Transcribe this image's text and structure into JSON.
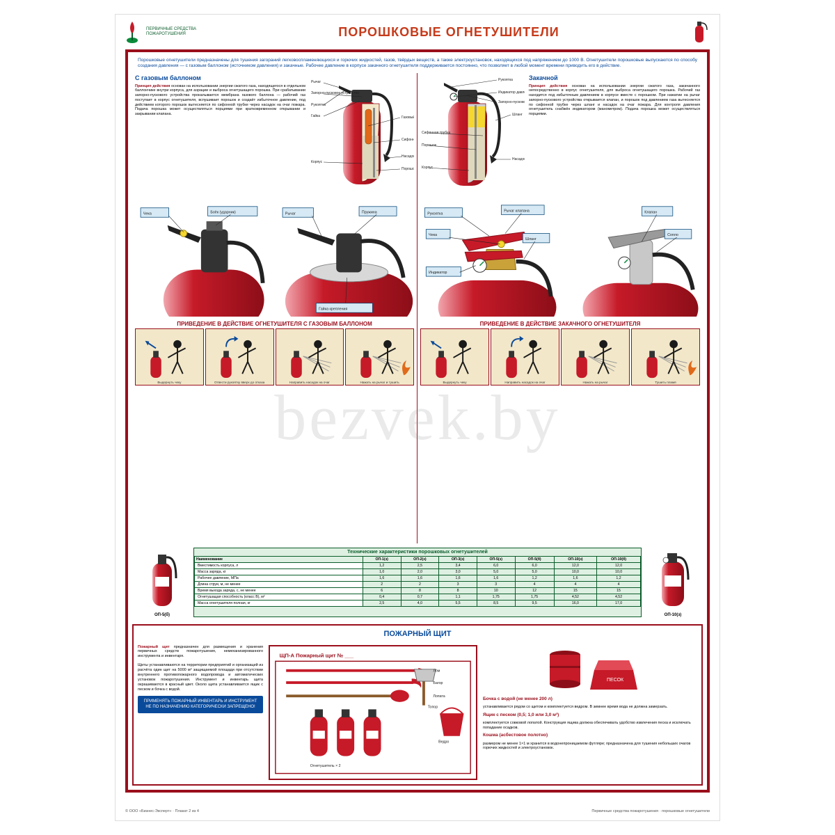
{
  "colors": {
    "frame": "#9a0e1b",
    "accent_blue": "#0a4a9a",
    "accent_red": "#9a0e1b",
    "text_dark": "#1a1a1a",
    "ext_red": "#c61a28",
    "ext_red_dark": "#8c0e18",
    "ext_highlight": "#f2f2f2",
    "powder_yellow": "#f5d730",
    "table_bg": "#def0e2",
    "table_border": "#0a5c2a",
    "panel_bg": "#f2e7c9",
    "remember_bg": "#0a4a9a",
    "title_color": "#c63a1a",
    "callout_bg": "#d6e9f5",
    "callout_border": "#0a4a7a",
    "green_logo": "#0a8a3a",
    "flame": "#e06a1a"
  },
  "header": {
    "sub1": "ПЕРВИЧНЫЕ СРЕДСТВА",
    "sub2": "ПОЖАРОТУШЕНИЯ",
    "title": "ПОРОШКОВЫЕ ОГНЕТУШИТЕЛИ"
  },
  "intro": "Порошковые огнетушители предназначены для тушения загораний легковоспламеняющихся и горючих жидкостей, газов, твёрдых веществ, а также электроустановок, находящихся под напряжением до 1000 В. Огнетушители порошковые выпускаются по способу создания давления — с газовым баллоном (источником давления) и закачные. Рабочее давление в корпусе закачного огнетушителя поддерживается постоянно, что позволяет в любой момент времени приводить его в действие.",
  "left": {
    "title": "С газовым баллоном",
    "lead": "Принцип действия",
    "desc": "основан на использовании энергии сжатого газа, находящегося в отдельном баллончике внутри корпуса, для аэрации и выброса огнетушащего порошка. При срабатывании запорно-пускового устройства прокалывается мембрана газового баллона — рабочий газ поступает в корпус огнетушителя, вспушивает порошок и создаёт избыточное давление, под действием которого порошок вытесняется по сифонной трубке через насадок на очаг пожара. Подача порошка может осуществляться порциями при кратковременном открывании и закрывании клапана.",
    "callouts": [
      "Рукоятка",
      "Запорно-пусковое устройство",
      "Сифонная трубка",
      "Газовый баллон",
      "Корпус",
      "Порошок",
      "Насадок",
      "Рычаг",
      "Гайка"
    ],
    "close_labels": [
      "Чека",
      "Боёк (ударник)",
      "Рычаг",
      "Пружина",
      "Гайка крепления"
    ],
    "strip_title": "ПРИВЕДЕНИЕ В ДЕЙСТВИЕ ОГНЕТУШИТЕЛЯ С ГАЗОВЫМ БАЛЛОНОМ",
    "steps": [
      "Выдернуть чеку",
      "Отвести рукоятку вверх до отказа",
      "Направить насадок на очаг",
      "Нажать на рычаг и тушить"
    ]
  },
  "right": {
    "title": "Закачной",
    "lead": "Принцип действия",
    "desc": "основан на использовании энергии сжатого газа, закачанного непосредственно в корпус огнетушителя, для выброса огнетушащего порошка. Рабочий газ находится под избыточным давлением в корпусе вместе с порошком. При нажатии на рычаг запорно-пускового устройства открывается клапан, и порошок под давлением газа вытесняется по сифонной трубке через шланг и насадок на очаг пожара. Для контроля давления огнетушитель снабжён индикатором (манометром). Подача порошка может осуществляться порциями.",
    "callouts": [
      "Рукоятка",
      "Чека",
      "Индикатор давления",
      "Запорно-пусковое устройство",
      "Сифонная трубка",
      "Корпус",
      "Порошок",
      "Шланг",
      "Насадок"
    ],
    "close_labels": [
      "Рукоятка",
      "Рычаг клапана",
      "Чека",
      "Индикатор",
      "Шланг",
      "Клапан",
      "Сопло"
    ],
    "strip_title": "ПРИВЕДЕНИЕ В ДЕЙСТВИЕ ЗАКАЧНОГО ОГНЕТУШИТЕЛЯ",
    "steps": [
      "Выдернуть чеку",
      "Направить насадок на очаг",
      "Нажать на рычаг",
      "Тушить пламя"
    ]
  },
  "table": {
    "title": "Технические характеристики порошковых огнетушителей",
    "left_label": "ОП-5(б)",
    "right_label": "ОП-10(з)",
    "row_headers": [
      "Вместимость корпуса, л",
      "Масса заряда, кг",
      "Рабочее давление, МПа",
      "Длина струи, м, не менее",
      "Время выхода заряда, с, не менее",
      "Огнетушащая способность (класс В), м²",
      "Масса огнетушителя полная, кг"
    ],
    "col_headers": [
      "ОП-1(з)",
      "ОП-2(з)",
      "ОП-3(з)",
      "ОП-5(з)",
      "ОП-5(б)",
      "ОП-10(з)",
      "ОП-10(б)"
    ],
    "rows": [
      [
        "1,2",
        "2,5",
        "3,4",
        "6,0",
        "6,0",
        "12,0",
        "12,0"
      ],
      [
        "1,0",
        "2,0",
        "3,0",
        "5,0",
        "5,0",
        "10,0",
        "10,0"
      ],
      [
        "1,6",
        "1,6",
        "1,6",
        "1,6",
        "1,2",
        "1,6",
        "1,2"
      ],
      [
        "2",
        "2",
        "3",
        "3",
        "4",
        "4",
        "4"
      ],
      [
        "6",
        "8",
        "8",
        "10",
        "12",
        "15",
        "15"
      ],
      [
        "0,4",
        "0,7",
        "1,1",
        "1,75",
        "1,75",
        "4,52",
        "4,52"
      ],
      [
        "2,5",
        "4,0",
        "5,5",
        "8,5",
        "9,5",
        "16,0",
        "17,0"
      ]
    ]
  },
  "shield": {
    "title": "ПОЖАРНЫЙ ЩИТ",
    "left_lead": "Пожарный щит",
    "left_text1": "предназначен для размещения и хранения первичных средств пожаротушения, немеханизированного инструмента и инвентаря.",
    "left_text2": "Щиты устанавливаются на территории предприятий и организаций из расчёта один щит на 5000 м² защищаемой площади при отсутствии внутреннего противопожарного водопровода и автоматических установок пожаротушения. Инструмент и инвентарь щита окрашиваются в красный цвет. Около щита устанавливается ящик с песком и бочка с водой.",
    "remember_label": "ПРИМЕНЯТЬ ПОЖАРНЫЙ ИНВЕНТАРЬ И ИНСТРУМЕНТ НЕ ПО НАЗНАЧЕНИЮ КАТЕГОРИЧЕСКИ ЗАПРЕЩЕНО!",
    "diagram_caption": "ЩП-А   Пожарный щит № ___",
    "items": [
      "Лом",
      "Багор",
      "Лопата",
      "Ведро",
      "Огнетушитель × 2",
      "Топор"
    ],
    "right": {
      "h1": "Бочка с водой (не менее 200 л)",
      "t1": "устанавливается рядом со щитом и комплектуется ведром. В зимнее время вода не должна замерзать.",
      "h2": "Ящик с песком (0,5; 1,0 или 3,0 м³)",
      "t2": "комплектуется совковой лопатой. Конструкция ящика должна обеспечивать удобство извлечения песка и исключать попадание осадков.",
      "h3": "Кошма (асбестовое полотно)",
      "t3": "размером не менее 1×1 м хранится в водонепроницаемом футляре; предназначена для тушения небольших очагов горючих жидкостей и электроустановок."
    }
  },
  "footer": {
    "left": "© ООО «Бизнес-Эксперт» · Плакат 2 из 4",
    "right": "Первичные средства пожаротушения · порошковые огнетушители"
  },
  "watermark": "bezvek.by"
}
